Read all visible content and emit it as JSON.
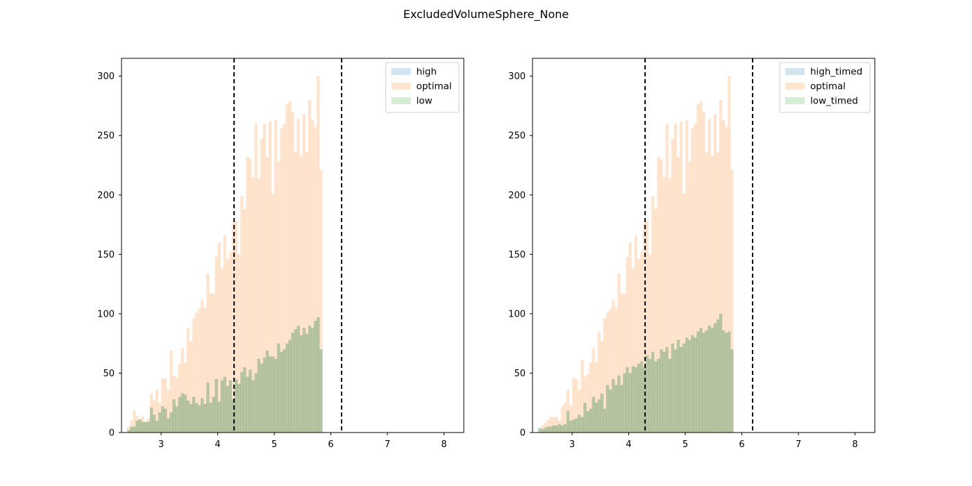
{
  "figure": {
    "title": "ExcludedVolumeSphere_None"
  },
  "chart_data": [
    {
      "type": "bar",
      "subtype": "overlaid-histogram",
      "xlim": [
        2.3,
        8.35
      ],
      "ylim": [
        0,
        315
      ],
      "xticks": [
        3,
        4,
        5,
        6,
        7,
        8
      ],
      "yticks": [
        0,
        50,
        100,
        150,
        200,
        250,
        300
      ],
      "bin_start": 2.4,
      "bin_width": 0.05,
      "grid": false,
      "legend_position": "top-right",
      "vlines": [
        4.29,
        6.19
      ],
      "colors": {
        "high": "#1f77b4",
        "optimal": "#ff7f0e",
        "low": "#2ca02c"
      },
      "series": [
        {
          "name": "high",
          "values": [
            2,
            5,
            5,
            10,
            11,
            9,
            9,
            9,
            21,
            15,
            10,
            17,
            22,
            20,
            12,
            17,
            28,
            22,
            30,
            33,
            32,
            27,
            24,
            30,
            25,
            23,
            29,
            24,
            42,
            25,
            30,
            45,
            26,
            44,
            47,
            39,
            44,
            28,
            45,
            41,
            51,
            55,
            47,
            53,
            44,
            50,
            62,
            58,
            63,
            69,
            64,
            64,
            62,
            75,
            68,
            70,
            75,
            78,
            84,
            87,
            90,
            82,
            88,
            83,
            90,
            88,
            94,
            97,
            70
          ]
        },
        {
          "name": "optimal",
          "values": [
            5,
            10,
            19,
            14,
            12,
            14,
            9,
            12,
            33,
            27,
            36,
            25,
            46,
            45,
            36,
            69,
            48,
            46,
            58,
            71,
            59,
            88,
            77,
            96,
            101,
            104,
            112,
            105,
            134,
            117,
            117,
            148,
            160,
            138,
            166,
            146,
            152,
            176,
            178,
            150,
            199,
            188,
            232,
            230,
            215,
            260,
            214,
            247,
            260,
            232,
            262,
            201,
            263,
            228,
            256,
            260,
            276,
            279,
            270,
            236,
            264,
            233,
            268,
            236,
            280,
            263,
            257,
            300,
            221
          ]
        },
        {
          "name": "low",
          "values": [
            2,
            5,
            5,
            10,
            11,
            9,
            9,
            9,
            21,
            15,
            10,
            17,
            22,
            20,
            12,
            17,
            28,
            22,
            30,
            33,
            32,
            27,
            24,
            30,
            25,
            23,
            29,
            24,
            42,
            25,
            30,
            45,
            26,
            44,
            47,
            39,
            44,
            28,
            45,
            41,
            51,
            55,
            47,
            53,
            44,
            50,
            62,
            58,
            63,
            69,
            64,
            64,
            62,
            75,
            68,
            70,
            75,
            78,
            84,
            87,
            90,
            82,
            88,
            83,
            90,
            88,
            94,
            97,
            70
          ]
        }
      ]
    },
    {
      "type": "bar",
      "subtype": "overlaid-histogram",
      "xlim": [
        2.3,
        8.35
      ],
      "ylim": [
        0,
        315
      ],
      "xticks": [
        3,
        4,
        5,
        6,
        7,
        8
      ],
      "yticks": [
        0,
        50,
        100,
        150,
        200,
        250,
        300
      ],
      "bin_start": 2.4,
      "bin_width": 0.05,
      "grid": false,
      "legend_position": "top-right",
      "vlines": [
        4.29,
        6.19
      ],
      "colors": {
        "high_timed": "#1f77b4",
        "optimal": "#ff7f0e",
        "low_timed": "#2ca02c"
      },
      "series": [
        {
          "name": "high_timed",
          "values": [
            4,
            3,
            4,
            5,
            5,
            6,
            6,
            7,
            6,
            7,
            18,
            10,
            11,
            12,
            15,
            13,
            25,
            18,
            20,
            30,
            25,
            28,
            33,
            20,
            40,
            36,
            45,
            40,
            48,
            40,
            50,
            55,
            50,
            56,
            55,
            58,
            60,
            55,
            65,
            62,
            68,
            60,
            62,
            70,
            68,
            72,
            62,
            75,
            70,
            78,
            72,
            75,
            80,
            78,
            82,
            80,
            85,
            88,
            84,
            86,
            90,
            88,
            92,
            95,
            100,
            86,
            84,
            85,
            70
          ]
        },
        {
          "name": "optimal",
          "values": [
            2,
            6,
            8,
            11,
            13,
            13,
            13,
            10,
            22,
            25,
            36,
            23,
            46,
            45,
            36,
            61,
            47,
            49,
            59,
            71,
            59,
            85,
            77,
            96,
            101,
            104,
            112,
            105,
            134,
            117,
            117,
            148,
            160,
            138,
            166,
            146,
            152,
            176,
            178,
            150,
            199,
            188,
            232,
            230,
            215,
            260,
            214,
            247,
            260,
            232,
            262,
            201,
            263,
            228,
            256,
            260,
            276,
            279,
            270,
            236,
            264,
            233,
            268,
            236,
            280,
            263,
            257,
            300,
            221
          ]
        },
        {
          "name": "low_timed",
          "values": [
            4,
            3,
            4,
            5,
            5,
            6,
            6,
            7,
            6,
            7,
            18,
            10,
            11,
            12,
            15,
            13,
            25,
            18,
            20,
            30,
            25,
            28,
            33,
            20,
            40,
            36,
            45,
            40,
            48,
            40,
            50,
            55,
            50,
            56,
            55,
            58,
            60,
            55,
            65,
            62,
            68,
            60,
            62,
            70,
            68,
            72,
            62,
            75,
            70,
            78,
            72,
            75,
            80,
            78,
            82,
            80,
            85,
            88,
            84,
            86,
            90,
            88,
            92,
            95,
            100,
            86,
            84,
            85,
            70
          ]
        }
      ]
    }
  ]
}
